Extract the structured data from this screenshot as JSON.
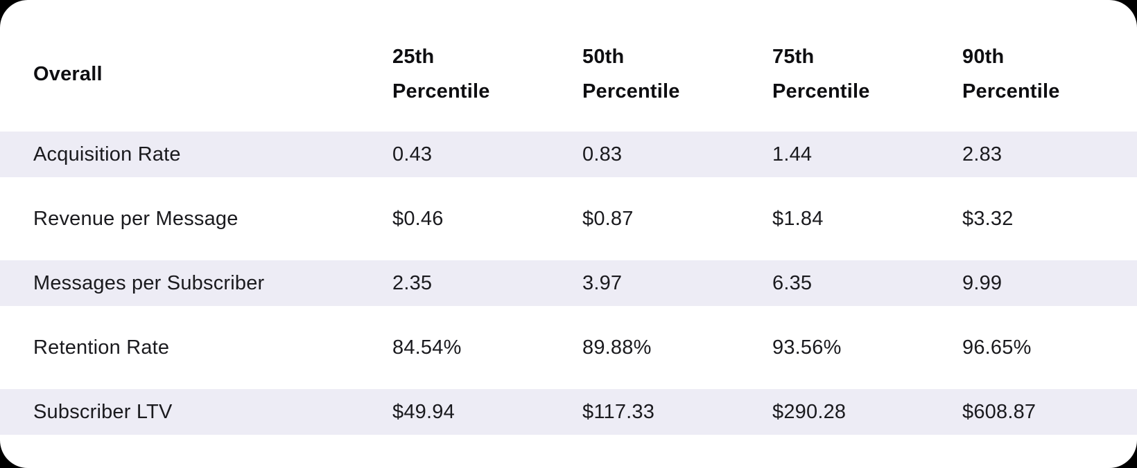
{
  "table": {
    "columns": [
      "Overall",
      "25th Percentile",
      "50th Percentile",
      "75th Percentile",
      "90th Percentile"
    ],
    "rows": [
      {
        "label": "Acquisition Rate",
        "values": [
          "0.43",
          "0.83",
          "1.44",
          "2.83"
        ]
      },
      {
        "label": "Revenue per Message",
        "values": [
          "$0.46",
          "$0.87",
          "$1.84",
          "$3.32"
        ]
      },
      {
        "label": "Messages per Subscriber",
        "values": [
          "2.35",
          "3.97",
          "6.35",
          "9.99"
        ]
      },
      {
        "label": "Retention Rate",
        "values": [
          "84.54%",
          "89.88%",
          "93.56%",
          "96.65%"
        ]
      },
      {
        "label": "Subscriber LTV",
        "values": [
          "$49.94",
          "$117.33",
          "$290.28",
          "$608.87"
        ]
      }
    ]
  },
  "colors": {
    "page_background": "#000000",
    "card_background": "#ffffff",
    "stripe_background": "#edecf5",
    "header_text": "#0e0e11",
    "body_text": "#1a1a1e"
  },
  "chart_data": {
    "type": "table",
    "title": "Overall",
    "columns": [
      "25th Percentile",
      "50th Percentile",
      "75th Percentile",
      "90th Percentile"
    ],
    "rows": [
      {
        "metric": "Acquisition Rate",
        "values": [
          0.43,
          0.83,
          1.44,
          2.83
        ]
      },
      {
        "metric": "Revenue per Message",
        "values": [
          0.46,
          0.87,
          1.84,
          3.32
        ],
        "unit": "$"
      },
      {
        "metric": "Messages per Subscriber",
        "values": [
          2.35,
          3.97,
          6.35,
          9.99
        ]
      },
      {
        "metric": "Retention Rate",
        "values": [
          84.54,
          89.88,
          93.56,
          96.65
        ],
        "unit": "%"
      },
      {
        "metric": "Subscriber LTV",
        "values": [
          49.94,
          117.33,
          290.28,
          608.87
        ],
        "unit": "$"
      }
    ],
    "layout": "striped rows, alternating lavender/white, header bold two-line"
  }
}
